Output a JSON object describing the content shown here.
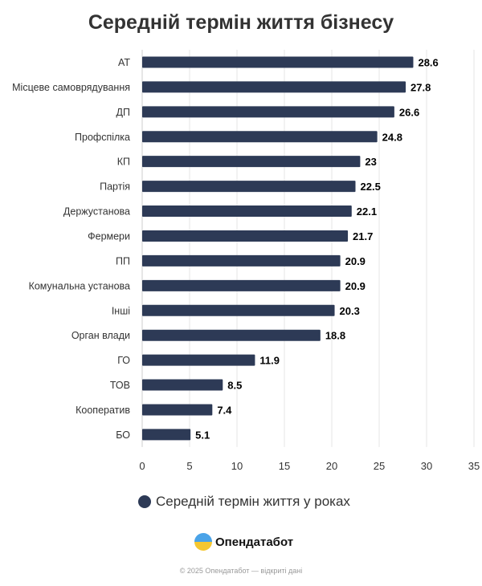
{
  "chart_data": {
    "type": "bar",
    "orientation": "horizontal",
    "title": "Середній термін життя бізнесу",
    "categories": [
      "АТ",
      "Місцеве самоврядування",
      "ДП",
      "Профспілка",
      "КП",
      "Партія",
      "Держустанова",
      "Фермери",
      "ПП",
      "Комунальна установа",
      "Інші",
      "Орган влади",
      "ГО",
      "ТОВ",
      "Кооператив",
      "БО"
    ],
    "series": [
      {
        "name": "Середній термін життя у роках",
        "values": [
          28.6,
          27.8,
          26.6,
          24.8,
          23,
          22.5,
          22.1,
          21.7,
          20.9,
          20.9,
          20.3,
          18.8,
          11.9,
          8.5,
          7.4,
          5.1
        ],
        "color": "#2d3a56"
      }
    ],
    "xlim": [
      0,
      35
    ],
    "xticks": [
      0,
      5,
      10,
      15,
      20,
      25,
      30,
      35
    ],
    "grid": true,
    "legend": "bottom"
  },
  "brand": {
    "name": "Опендатабот",
    "footer": "© 2025 Опендатабот — відкриті дані"
  }
}
